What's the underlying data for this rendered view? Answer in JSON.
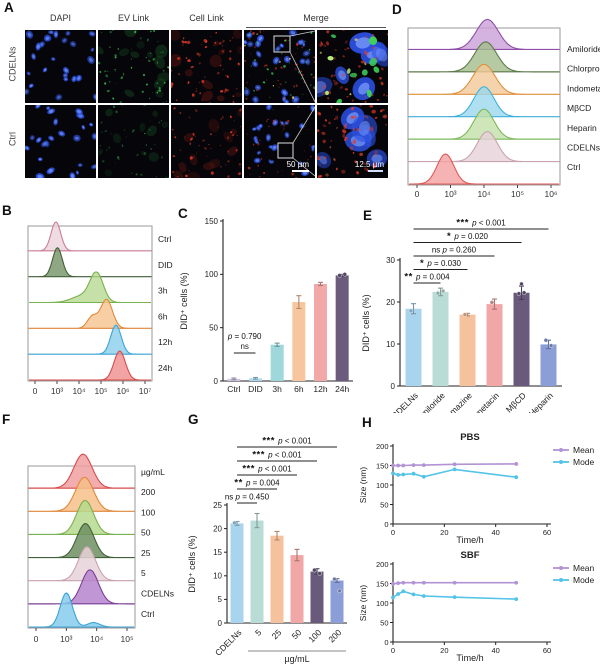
{
  "panels": {
    "a": {
      "label": "A",
      "columns": [
        "DAPI",
        "EV Link",
        "Cell Link",
        "Merge"
      ],
      "rows": [
        "CDELNs",
        "Ctrl"
      ],
      "scale_bar_main": "50 µm",
      "scale_bar_zoom": "12.5 µm",
      "channel_colors": {
        "dapi": "#2b4fe0",
        "ev": "#3ed058",
        "cell": "#e23a28"
      }
    },
    "b": {
      "label": "B"
    },
    "c": {
      "label": "C"
    },
    "d": {
      "label": "D"
    },
    "e": {
      "label": "E"
    },
    "f": {
      "label": "F"
    },
    "g": {
      "label": "G"
    },
    "h": {
      "label": "H"
    }
  },
  "chart_data": [
    {
      "id": "panel_b",
      "type": "area",
      "subtype": "ridgeline-histogram",
      "xticks": [
        "0",
        "10³",
        "10⁴",
        "10⁵",
        "10⁶",
        "10⁷"
      ],
      "series": [
        {
          "name": "Ctrl",
          "color": "#c97f95",
          "fill": "#ead2da",
          "center": 0.95,
          "sigma": 0.22
        },
        {
          "name": "DID",
          "color": "#41603a",
          "fill": "#6f8f60",
          "center": 1.02,
          "sigma": 0.22
        },
        {
          "name": "3h",
          "color": "#79b14e",
          "fill": "#b6d98e",
          "center": 2.8,
          "sigma": 0.3,
          "bump": {
            "c": 2.1,
            "h": 0.22,
            "s": 0.45
          }
        },
        {
          "name": "6h",
          "color": "#e0883a",
          "fill": "#f6c18a",
          "center": 3.25,
          "sigma": 0.27,
          "bump": {
            "c": 2.6,
            "h": 0.4,
            "s": 0.22
          }
        },
        {
          "name": "12h",
          "color": "#3ba3d6",
          "fill": "#86cdec",
          "center": 3.68,
          "sigma": 0.24
        },
        {
          "name": "24h",
          "color": "#d84a4a",
          "fill": "#ee8a8a",
          "center": 3.85,
          "sigma": 0.26
        }
      ]
    },
    {
      "id": "panel_c",
      "type": "bar",
      "ylabel": "DID⁺ cells (%)",
      "ylim": [
        0,
        150
      ],
      "yticks": [
        0,
        50,
        100,
        150
      ],
      "categories": [
        "Ctrl",
        "DID",
        "3h",
        "6h",
        "12h",
        "24h"
      ],
      "values": [
        2,
        2.5,
        34,
        74,
        91,
        99
      ],
      "errors": [
        0.8,
        0.8,
        1.5,
        6,
        1.5,
        1
      ],
      "colors": [
        "#cfc6e2",
        "#abd9f0",
        "#9fd8da",
        "#f8c69e",
        "#f3a8a8",
        "#6b5b7d"
      ],
      "points": [
        [],
        [],
        [],
        [],
        [],
        [
          99,
          100
        ]
      ],
      "sig_simple": {
        "a": 0,
        "b": 1,
        "p": "p = 0.790",
        "note": "ns"
      }
    },
    {
      "id": "panel_d",
      "type": "area",
      "subtype": "ridgeline-histogram",
      "xticks": [
        "0",
        "10³",
        "10⁴",
        "10⁵",
        "10⁶"
      ],
      "series": [
        {
          "name": "Amiloride",
          "color": "#8e4fa8",
          "fill": "#c9a0d8",
          "center": 2.1,
          "sigma": 0.33
        },
        {
          "name": "Chlorpromazine",
          "color": "#5d7a4a",
          "fill": "#a3bd8c",
          "center": 2.05,
          "sigma": 0.33
        },
        {
          "name": "Indometacin",
          "color": "#e0913f",
          "fill": "#f2c999",
          "center": 2.0,
          "sigma": 0.33
        },
        {
          "name": "MβCD",
          "color": "#3fb0dc",
          "fill": "#9bd8ee",
          "center": 2.0,
          "sigma": 0.3
        },
        {
          "name": "Heparin",
          "color": "#7cb85c",
          "fill": "#c2e0a8",
          "center": 2.0,
          "sigma": 0.3
        },
        {
          "name": "CDELNs",
          "color": "#c9a3ae",
          "fill": "#e6d2d8",
          "center": 2.1,
          "sigma": 0.3
        },
        {
          "name": "Ctrl",
          "color": "#e05858",
          "fill": "#f4a0a0",
          "center": 0.85,
          "sigma": 0.25
        }
      ]
    },
    {
      "id": "panel_e",
      "type": "bar",
      "ylabel": "DID⁺ cells (%)",
      "ylim": [
        0,
        30
      ],
      "yticks": [
        0,
        10,
        20,
        30
      ],
      "categories": [
        "CDELNs",
        "Amiloride",
        "Chlorpromazine",
        "Indometacin",
        "MβCD",
        "Heparin"
      ],
      "values": [
        18.4,
        22.4,
        17,
        19.5,
        22.2,
        9.9
      ],
      "errors": [
        1.2,
        0.9,
        0.3,
        1.2,
        1.6,
        1.0
      ],
      "colors": [
        "#a9d4ee",
        "#b9ddd6",
        "#f6c29e",
        "#f2a7a7",
        "#695a7c",
        "#8c9ed8"
      ],
      "points": [
        [
          17.9
        ],
        [
          22.1,
          22.6
        ],
        [
          17
        ],
        [
          19.9
        ],
        [
          22,
          22.2,
          24.3
        ],
        [
          10.9,
          9.6
        ]
      ],
      "sig": [
        {
          "a": 0,
          "b": 1,
          "stars": "**",
          "p": "p = 0.004"
        },
        {
          "a": 0,
          "b": 2,
          "stars": "*",
          "p": "p = 0.030"
        },
        {
          "a": 0,
          "b": 3,
          "stars": "ns",
          "p": "p = 0.260"
        },
        {
          "a": 0,
          "b": 4,
          "stars": "*",
          "p": "p = 0.020"
        },
        {
          "a": 0,
          "b": 5,
          "stars": "***",
          "p": "p < 0.001"
        }
      ]
    },
    {
      "id": "panel_f",
      "type": "area",
      "subtype": "ridgeline-histogram",
      "unit_header": "µg/mL",
      "xticks": [
        "0",
        "10³",
        "10⁴",
        "10⁵"
      ],
      "series": [
        {
          "name": "200",
          "color": "#d84a4a",
          "fill": "#f0a0a0",
          "center": 1.55,
          "sigma": 0.3
        },
        {
          "name": "100",
          "color": "#e0883a",
          "fill": "#f6c08a",
          "center": 1.6,
          "sigma": 0.3
        },
        {
          "name": "50",
          "color": "#79b14e",
          "fill": "#b6d98e",
          "center": 1.62,
          "sigma": 0.28
        },
        {
          "name": "25",
          "color": "#41603a",
          "fill": "#6f8f60",
          "center": 1.63,
          "sigma": 0.28
        },
        {
          "name": "5",
          "color": "#c9a3ae",
          "fill": "#e6d2d8",
          "center": 1.68,
          "sigma": 0.28
        },
        {
          "name": "CDELNs",
          "color": "#7a3f96",
          "fill": "#b684cc",
          "center": 1.78,
          "sigma": 0.28
        },
        {
          "name": "Ctrl",
          "color": "#3ba3d6",
          "fill": "#86cdec",
          "center": 1.0,
          "sigma": 0.2,
          "bump": {
            "c": 1.9,
            "h": 0.13,
            "s": 0.2
          }
        }
      ]
    },
    {
      "id": "panel_g",
      "type": "bar",
      "ylabel": "DID⁺ cells (%)",
      "ylim": [
        0,
        25
      ],
      "yticks": [
        0,
        5,
        10,
        15,
        20,
        25
      ],
      "categories": [
        "CDELNs",
        "5",
        "25",
        "50",
        "100",
        "200"
      ],
      "values": [
        21.1,
        21.7,
        18.5,
        14.4,
        10.9,
        9.0
      ],
      "errors": [
        0.4,
        1.5,
        0.9,
        1.2,
        0.6,
        0.4
      ],
      "colors": [
        "#a9d4ee",
        "#b9ddd6",
        "#f6c29e",
        "#f2a7a7",
        "#695a7c",
        "#8c9ed8"
      ],
      "points": [
        [
          21.2
        ],
        [],
        [],
        [],
        [
          11.2,
          10.5
        ],
        [
          9.3,
          6.8
        ]
      ],
      "group_label": "µg/mL",
      "group_span": [
        1,
        5
      ],
      "sig": [
        {
          "a": 0,
          "b": 1,
          "stars": "ns",
          "p": "p = 0.450"
        },
        {
          "a": 0,
          "b": 2,
          "stars": "**",
          "p": "p = 0.004"
        },
        {
          "a": 0,
          "b": 3,
          "stars": "***",
          "p": "p < 0.001"
        },
        {
          "a": 0,
          "b": 4,
          "stars": "***",
          "p": "p < 0.001"
        },
        {
          "a": 0,
          "b": 5,
          "stars": "***",
          "p": "p < 0.001"
        }
      ]
    },
    {
      "id": "panel_h_pbs",
      "type": "line",
      "title": "PBS",
      "xlabel": "Time/h",
      "ylabel": "Size (nm)",
      "xlim": [
        0,
        60
      ],
      "xticks": [
        0,
        20,
        40,
        60
      ],
      "ylim": [
        0,
        200
      ],
      "yticks": [
        0,
        50,
        100,
        150,
        200
      ],
      "x": [
        0,
        2,
        4,
        8,
        12,
        24,
        48
      ],
      "series": [
        {
          "name": "Mean",
          "color": "#b293d4",
          "values": [
            150,
            150,
            150,
            151,
            151,
            153,
            154
          ]
        },
        {
          "name": "Mode",
          "color": "#53c3e8",
          "values": [
            130,
            126,
            127,
            129,
            121,
            140,
            120
          ]
        }
      ],
      "legend_position": "right"
    },
    {
      "id": "panel_h_sbf",
      "type": "line",
      "title": "SBF",
      "xlabel": "Time/h",
      "ylabel": "Size (nm)",
      "xlim": [
        0,
        60
      ],
      "xticks": [
        0,
        20,
        40,
        60
      ],
      "ylim": [
        0,
        200
      ],
      "yticks": [
        0,
        50,
        100,
        150,
        200
      ],
      "x": [
        0,
        2,
        4,
        8,
        12,
        24,
        48
      ],
      "series": [
        {
          "name": "Mean",
          "color": "#b293d4",
          "values": [
            149,
            151,
            152,
            152,
            152,
            152,
            152
          ]
        },
        {
          "name": "Mode",
          "color": "#53c3e8",
          "values": [
            114,
            123,
            130,
            122,
            118,
            115,
            110
          ]
        }
      ],
      "legend_position": "right"
    }
  ]
}
